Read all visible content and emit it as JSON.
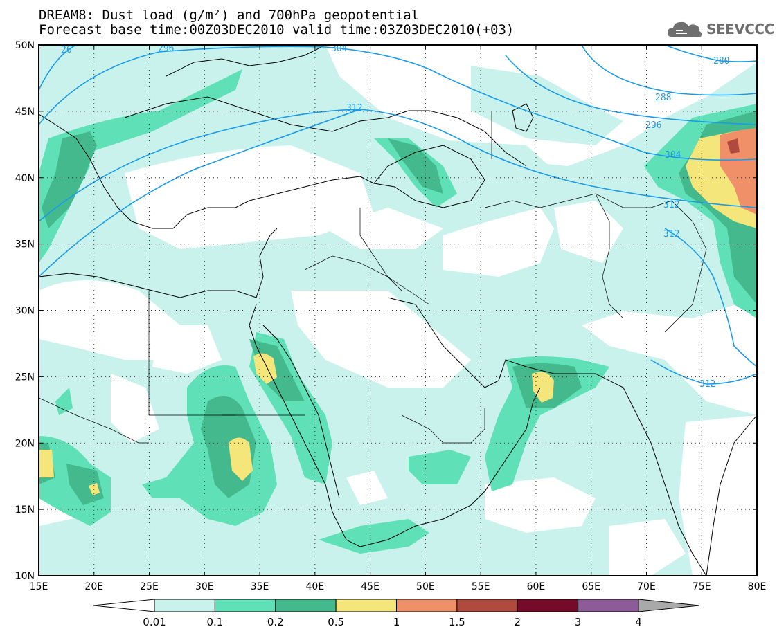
{
  "header": {
    "line1": "DREAM8: Dust load (g/m²) and 700hPa geopotential",
    "line2": "Forecast base time:00Z03DEC2010 valid time:03Z03DEC2010(+03)"
  },
  "logo": {
    "text": "SEEVCCC",
    "icon": "cloud-icon"
  },
  "map": {
    "lon_range": [
      15,
      80
    ],
    "lat_range": [
      10,
      50
    ],
    "lon_labels": [
      "15E",
      "20E",
      "25E",
      "30E",
      "35E",
      "40E",
      "45E",
      "50E",
      "55E",
      "60E",
      "65E",
      "70E",
      "75E",
      "80E"
    ],
    "lat_labels": [
      "10N",
      "15N",
      "20N",
      "25N",
      "30N",
      "35N",
      "40N",
      "45N",
      "50N"
    ],
    "gridlines": true
  },
  "contours": {
    "labels": [
      "26",
      "296",
      "304",
      "312",
      "280",
      "288",
      "296",
      "304",
      "312",
      "312",
      "312"
    ],
    "color": "#1a9bea"
  },
  "colorbar": {
    "labels": [
      "0.01",
      "0.1",
      "0.2",
      "0.5",
      "1",
      "1.5",
      "2",
      "3",
      "4"
    ],
    "colors": [
      "#ffffff",
      "#c9f2ec",
      "#5fe0b6",
      "#45b98e",
      "#f4e67a",
      "#ef9069",
      "#b14a3e",
      "#760a2b",
      "#8d5c98",
      "#a9a9a9"
    ]
  }
}
